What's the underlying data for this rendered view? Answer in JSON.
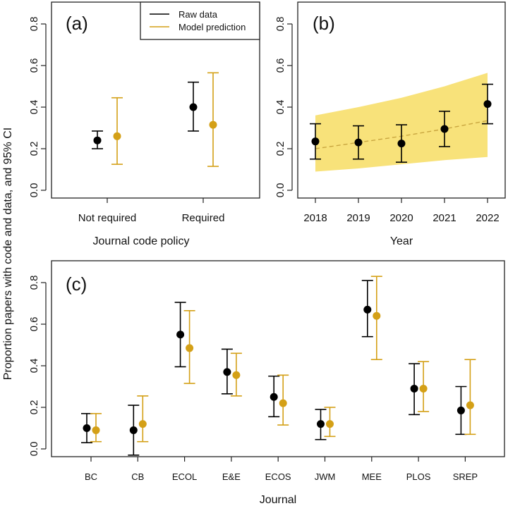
{
  "colors": {
    "raw": "#000000",
    "model": "#D4A017",
    "band": "#F8E27A",
    "trend": "#C9A640"
  },
  "ylabel": "Proportion papers with code and data, and 95% CI",
  "legend": {
    "items": [
      {
        "label": "Raw data",
        "color": "#000000"
      },
      {
        "label": "Model prediction",
        "color": "#D4A017"
      }
    ],
    "placement": "top-right of panel (a)"
  },
  "chart_data": [
    {
      "type": "scatter",
      "panel": "(a)",
      "xlabel": "Journal code policy",
      "ylabel": "Proportion papers with code and data, and 95% CI",
      "ylim": [
        0,
        0.85
      ],
      "yticks": [
        "0.0",
        "0.2",
        "0.4",
        "0.6",
        "0.8"
      ],
      "categories": [
        "Not required",
        "Required"
      ],
      "series": [
        {
          "name": "Raw data",
          "values": [
            0.24,
            0.4
          ],
          "lower": [
            0.2,
            0.285
          ],
          "upper": [
            0.285,
            0.52
          ]
        },
        {
          "name": "Model prediction",
          "values": [
            0.26,
            0.315
          ],
          "lower": [
            0.125,
            0.115
          ],
          "upper": [
            0.445,
            0.565
          ]
        }
      ]
    },
    {
      "type": "scatter",
      "panel": "(b)",
      "xlabel": "Year",
      "ylim": [
        0,
        0.85
      ],
      "yticks": [
        "0.0",
        "0.2",
        "0.4",
        "0.6",
        "0.8"
      ],
      "categories": [
        "2018",
        "2019",
        "2020",
        "2021",
        "2022"
      ],
      "series": [
        {
          "name": "Raw data",
          "values": [
            0.235,
            0.23,
            0.225,
            0.295,
            0.415
          ],
          "lower": [
            0.15,
            0.15,
            0.135,
            0.21,
            0.32
          ],
          "upper": [
            0.32,
            0.31,
            0.315,
            0.38,
            0.51
          ]
        }
      ],
      "model_trend": {
        "x": [
          2018,
          2019,
          2020,
          2021,
          2022
        ],
        "fit": [
          0.2,
          0.23,
          0.26,
          0.295,
          0.335
        ],
        "lower": [
          0.09,
          0.105,
          0.125,
          0.145,
          0.16
        ],
        "upper": [
          0.36,
          0.4,
          0.445,
          0.5,
          0.565
        ]
      }
    },
    {
      "type": "scatter",
      "panel": "(c)",
      "xlabel": "Journal",
      "ylim": [
        0,
        0.85
      ],
      "yticks": [
        "0.0",
        "0.2",
        "0.4",
        "0.6",
        "0.8"
      ],
      "categories": [
        "BC",
        "CB",
        "ECOL",
        "E&E",
        "ECOS",
        "JWM",
        "MEE",
        "PLOS",
        "SREP"
      ],
      "series": [
        {
          "name": "Raw data",
          "values": [
            0.1,
            0.09,
            0.55,
            0.37,
            0.25,
            0.12,
            0.67,
            0.29,
            0.185
          ],
          "lower": [
            0.03,
            -0.03,
            0.395,
            0.265,
            0.155,
            0.045,
            0.54,
            0.165,
            0.07
          ],
          "upper": [
            0.17,
            0.21,
            0.705,
            0.48,
            0.35,
            0.19,
            0.81,
            0.41,
            0.3
          ]
        },
        {
          "name": "Model prediction",
          "values": [
            0.09,
            0.12,
            0.485,
            0.355,
            0.22,
            0.12,
            0.64,
            0.29,
            0.21
          ],
          "lower": [
            0.035,
            0.035,
            0.315,
            0.255,
            0.115,
            0.06,
            0.43,
            0.18,
            0.07
          ],
          "upper": [
            0.17,
            0.255,
            0.665,
            0.46,
            0.355,
            0.2,
            0.83,
            0.42,
            0.43
          ]
        }
      ]
    }
  ]
}
